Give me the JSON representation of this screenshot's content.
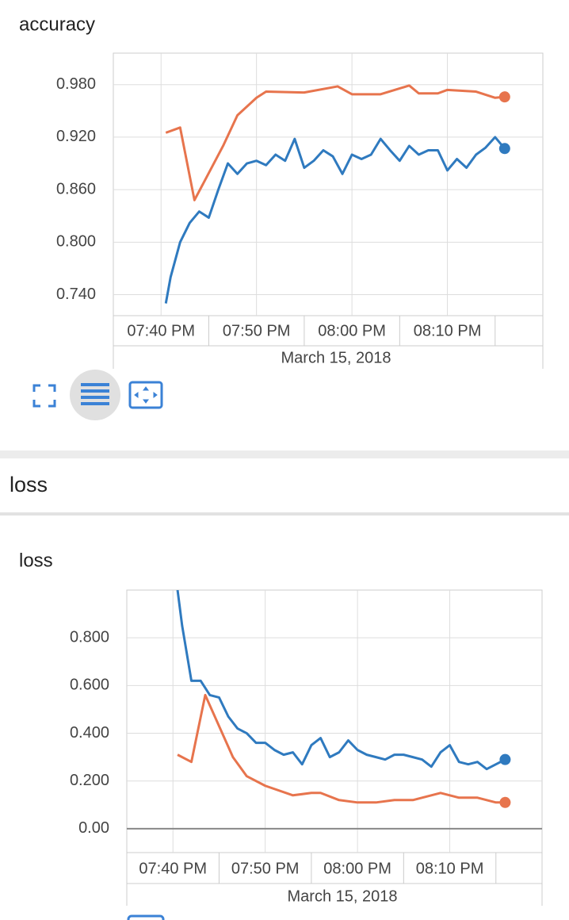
{
  "group_header": "loss",
  "chart_data": [
    {
      "type": "line",
      "title": "accuracy",
      "xlabel": "March 15, 2018",
      "grid": true,
      "xlim": [
        "19:35",
        "20:20"
      ],
      "xticks": [
        {
          "value": "19:40",
          "label": "07:40 PM"
        },
        {
          "value": "19:50",
          "label": "07:50 PM"
        },
        {
          "value": "20:00",
          "label": "08:00 PM"
        },
        {
          "value": "20:10",
          "label": "08:10 PM"
        }
      ],
      "ylim": [
        0.716,
        1.016
      ],
      "yticks": [
        {
          "value": 0.74,
          "label": "0.740"
        },
        {
          "value": 0.8,
          "label": "0.800"
        },
        {
          "value": 0.86,
          "label": "0.860"
        },
        {
          "value": 0.92,
          "label": "0.920"
        },
        {
          "value": 0.98,
          "label": "0.980"
        }
      ],
      "series": [
        {
          "color": "#e7744d",
          "x": [
            "19:40:30",
            "19:42",
            "19:43:30",
            "19:46:30",
            "19:48",
            "19:50",
            "19:51",
            "19:55",
            "19:58:30",
            "20:00",
            "20:03",
            "20:06",
            "20:07",
            "20:09",
            "20:10",
            "20:13",
            "20:15",
            "20:16"
          ],
          "values": [
            0.925,
            0.931,
            0.848,
            0.91,
            0.945,
            0.965,
            0.972,
            0.971,
            0.978,
            0.969,
            0.969,
            0.979,
            0.97,
            0.97,
            0.974,
            0.972,
            0.965,
            0.966
          ]
        },
        {
          "color": "#2f7abf",
          "x": [
            "19:40:30",
            "19:41",
            "19:42",
            "19:43",
            "19:44",
            "19:45",
            "19:46",
            "19:47",
            "19:48",
            "19:49",
            "19:50",
            "19:51",
            "19:52",
            "19:53",
            "19:54",
            "19:55",
            "19:56",
            "19:57",
            "19:58",
            "19:59",
            "20:00",
            "20:01",
            "20:02",
            "20:03",
            "20:04",
            "20:05",
            "20:06",
            "20:07",
            "20:08",
            "20:09",
            "20:10",
            "20:11",
            "20:12",
            "20:13",
            "20:14",
            "20:15",
            "20:16"
          ],
          "values": [
            0.73,
            0.76,
            0.8,
            0.822,
            0.835,
            0.828,
            0.86,
            0.89,
            0.878,
            0.89,
            0.893,
            0.888,
            0.9,
            0.893,
            0.918,
            0.885,
            0.893,
            0.905,
            0.898,
            0.878,
            0.9,
            0.895,
            0.9,
            0.918,
            0.905,
            0.893,
            0.91,
            0.9,
            0.905,
            0.905,
            0.882,
            0.895,
            0.885,
            0.9,
            0.908,
            0.92,
            0.907
          ]
        }
      ]
    },
    {
      "type": "line",
      "title": "loss",
      "xlabel": "March 15, 2018",
      "grid": true,
      "xlim": [
        "19:35",
        "20:20"
      ],
      "xticks": [
        {
          "value": "19:40",
          "label": "07:40 PM"
        },
        {
          "value": "19:50",
          "label": "07:50 PM"
        },
        {
          "value": "20:00",
          "label": "08:00 PM"
        },
        {
          "value": "20:10",
          "label": "08:10 PM"
        }
      ],
      "ylim": [
        -0.1,
        1.0
      ],
      "yticks": [
        {
          "value": 0,
          "label": "0.00"
        },
        {
          "value": 0.2,
          "label": "0.200"
        },
        {
          "value": 0.4,
          "label": "0.400"
        },
        {
          "value": 0.6,
          "label": "0.600"
        },
        {
          "value": 0.8,
          "label": "0.800"
        }
      ],
      "series": [
        {
          "color": "#e7744d",
          "x": [
            "19:40:30",
            "19:42",
            "19:43:30",
            "19:46:30",
            "19:48",
            "19:50",
            "19:53",
            "19:55",
            "19:56",
            "19:58",
            "20:00",
            "20:02",
            "20:04",
            "20:06",
            "20:09",
            "20:11",
            "20:13",
            "20:15",
            "20:16"
          ],
          "values": [
            0.31,
            0.28,
            0.56,
            0.3,
            0.22,
            0.18,
            0.14,
            0.15,
            0.15,
            0.12,
            0.11,
            0.11,
            0.12,
            0.12,
            0.15,
            0.13,
            0.13,
            0.11,
            0.11
          ]
        },
        {
          "color": "#2f7abf",
          "x": [
            "19:40:30",
            "19:41",
            "19:42",
            "19:43",
            "19:44",
            "19:45",
            "19:46",
            "19:47",
            "19:48",
            "19:49",
            "19:50",
            "19:51",
            "19:52",
            "19:53",
            "19:54",
            "19:55",
            "19:56",
            "19:57",
            "19:58",
            "19:59",
            "20:00",
            "20:01",
            "20:02",
            "20:03",
            "20:04",
            "20:05",
            "20:06",
            "20:07",
            "20:08",
            "20:09",
            "20:10",
            "20:11",
            "20:12",
            "20:13",
            "20:14",
            "20:15",
            "20:16"
          ],
          "values": [
            1.0,
            0.85,
            0.62,
            0.62,
            0.56,
            0.55,
            0.47,
            0.42,
            0.4,
            0.36,
            0.36,
            0.33,
            0.31,
            0.32,
            0.27,
            0.35,
            0.38,
            0.3,
            0.32,
            0.37,
            0.33,
            0.31,
            0.3,
            0.29,
            0.31,
            0.31,
            0.3,
            0.29,
            0.26,
            0.32,
            0.35,
            0.28,
            0.27,
            0.28,
            0.25,
            0.27,
            0.29
          ]
        }
      ]
    }
  ]
}
